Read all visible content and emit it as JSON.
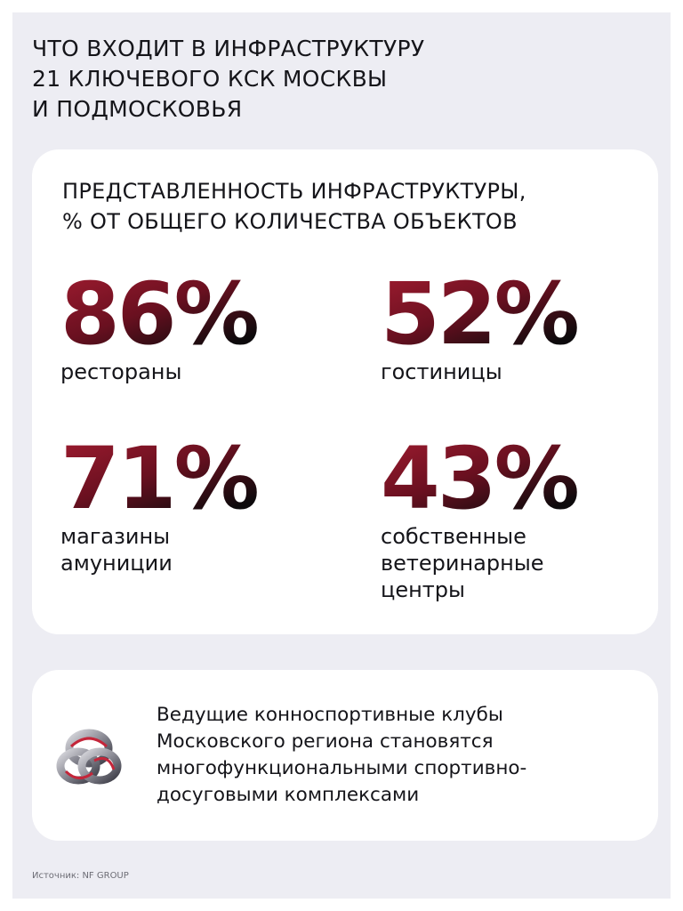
{
  "header": {
    "title": [
      "ЧТО ВХОДИТ В ИНФРАСТРУКТУРУ",
      "21 КЛЮЧЕВОГО КСК МОСКВЫ",
      "И ПОДМОСКОВЬЯ"
    ]
  },
  "card": {
    "title": [
      "ПРЕДСТАВЛЕННОСТЬ ИНФРАСТРУКТУРЫ,",
      "% ОТ ОБЩЕГО КОЛИЧЕСТВА ОБЪЕКТОВ"
    ],
    "stats": [
      {
        "value": "86%",
        "label": [
          "рестораны"
        ]
      },
      {
        "value": "52%",
        "label": [
          "гостиницы"
        ]
      },
      {
        "value": "71%",
        "label": [
          "магазины",
          "амуниции"
        ]
      },
      {
        "value": "43%",
        "label": [
          "собственные",
          "ветеринарные",
          "центры"
        ]
      }
    ]
  },
  "note": {
    "text": [
      "Ведущие конноспортивные клубы",
      "Московского региона становятся",
      "многофункциональными спортивно-",
      "досуговыми комплексами"
    ]
  },
  "source": "Источник: NF GROUP"
}
